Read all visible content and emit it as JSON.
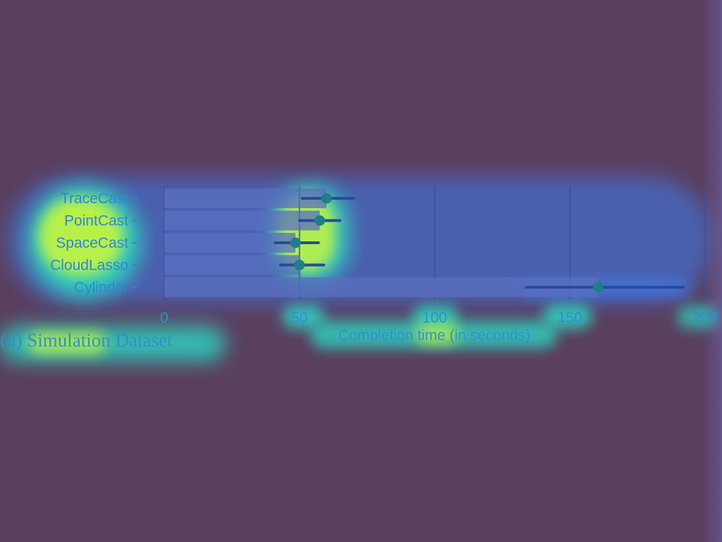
{
  "caption": "(d) Simulation Dataset",
  "colors": {
    "background": "#5a3f5f",
    "bar": "#5a6fbf",
    "point": "#1f7f86",
    "error_bar": "#2a4a9a",
    "grid": "#3b4f9c",
    "heat_low": "#3e7cf0",
    "heat_mid": "#2fd2c0",
    "heat_high": "#c6f53c"
  },
  "chart_data": {
    "type": "bar",
    "orientation": "horizontal",
    "categories": [
      "TraceCast",
      "PointCast",
      "SpaceCast",
      "CloudLasso",
      "Cylinder"
    ],
    "values": [
      60,
      57.5,
      48.5,
      50,
      160.5
    ],
    "error_low": [
      51,
      50,
      41,
      43,
      134
    ],
    "error_high": [
      70,
      65,
      57,
      59,
      192
    ],
    "xlabel": "Completion time (in seconds)",
    "ylabel": "",
    "xlim": [
      0,
      200
    ],
    "xticks": [
      0,
      50,
      100,
      150,
      200
    ],
    "xtick_labels": [
      "0",
      "50",
      "100",
      "150",
      "200"
    ],
    "grid": "vertical"
  }
}
